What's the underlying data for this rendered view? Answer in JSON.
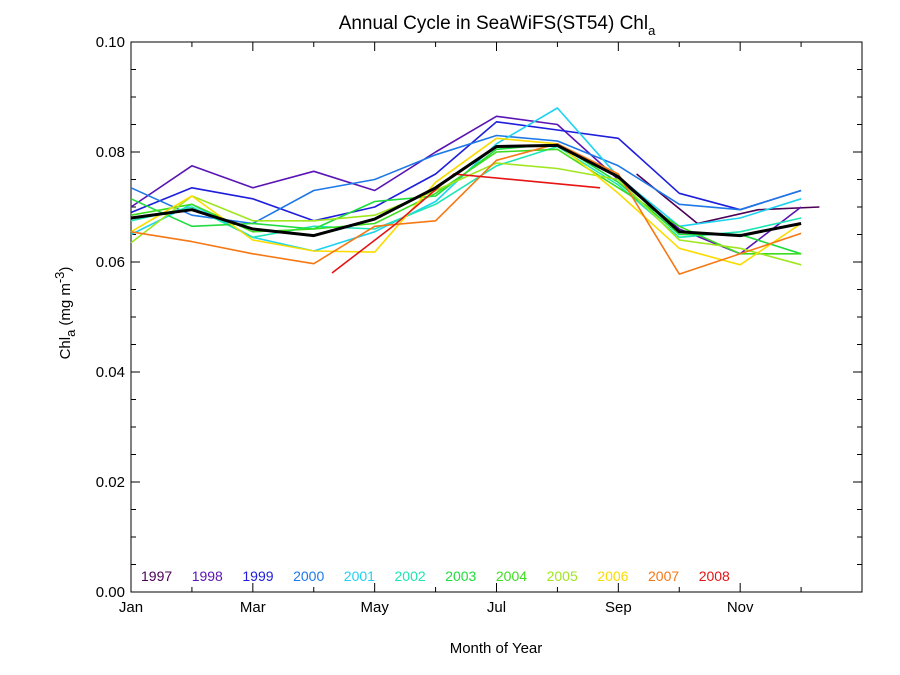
{
  "chart_data": {
    "type": "line",
    "title": "Annual Cycle in SeaWiFS(ST54) Chl",
    "title_subscript": "a",
    "xlabel": "Month of Year",
    "ylabel": "Chl",
    "ylabel_subscript": "a",
    "ylabel_units": "(mg m",
    "ylabel_units_superscript": "-3",
    "ylabel_units_close": ")",
    "xlim": [
      1,
      13
    ],
    "ylim": [
      0.0,
      0.1
    ],
    "x_ticks": [
      {
        "value": 1,
        "label": "Jan"
      },
      {
        "value": 3,
        "label": "Mar"
      },
      {
        "value": 5,
        "label": "May"
      },
      {
        "value": 7,
        "label": "Jul"
      },
      {
        "value": 9,
        "label": "Sep"
      },
      {
        "value": 11,
        "label": "Nov"
      }
    ],
    "y_ticks": [
      {
        "value": 0.0,
        "label": "0.00"
      },
      {
        "value": 0.02,
        "label": "0.02"
      },
      {
        "value": 0.04,
        "label": "0.04"
      },
      {
        "value": 0.06,
        "label": "0.06"
      },
      {
        "value": 0.08,
        "label": "0.08"
      },
      {
        "value": 0.1,
        "label": "0.10"
      }
    ],
    "grid": false,
    "legend_position": "bottom-left",
    "series": [
      {
        "name": "1997",
        "color": "#4b0055",
        "x": [
          9.3,
          10.3,
          11.3,
          12.3
        ],
        "y": [
          0.076,
          0.067,
          0.0695,
          0.07
        ]
      },
      {
        "name": "1998",
        "color": "#5a14b4",
        "x": [
          1,
          2,
          3,
          4,
          5,
          6,
          7,
          8,
          9,
          10,
          11,
          12
        ],
        "y": [
          0.07,
          0.0775,
          0.0735,
          0.0765,
          0.073,
          0.08,
          0.0865,
          0.085,
          0.075,
          0.066,
          0.0615,
          0.07
        ]
      },
      {
        "name": "1999",
        "color": "#1e1edc",
        "x": [
          1,
          2,
          3,
          4,
          5,
          6,
          7,
          8,
          9,
          10,
          11,
          12
        ],
        "y": [
          0.069,
          0.0735,
          0.0715,
          0.0675,
          0.07,
          0.076,
          0.0855,
          0.084,
          0.0825,
          0.0725,
          0.0695,
          0.073
        ]
      },
      {
        "name": "2000",
        "color": "#1e78e6",
        "x": [
          1,
          2,
          3,
          4,
          5,
          6,
          7,
          8,
          9,
          10,
          11,
          12
        ],
        "y": [
          0.0735,
          0.0685,
          0.067,
          0.073,
          0.075,
          0.0795,
          0.083,
          0.082,
          0.0775,
          0.0705,
          0.0695,
          0.073
        ]
      },
      {
        "name": "2001",
        "color": "#1ed2f0",
        "x": [
          1,
          2,
          3,
          4,
          5,
          6,
          7,
          8,
          9,
          10,
          11,
          12
        ],
        "y": [
          0.065,
          0.0705,
          0.0645,
          0.062,
          0.0655,
          0.071,
          0.0815,
          0.088,
          0.0755,
          0.0665,
          0.068,
          0.0715
        ]
      },
      {
        "name": "2002",
        "color": "#1ee6b4",
        "x": [
          1,
          2,
          3,
          4,
          5,
          6,
          7,
          8,
          9,
          10,
          11,
          12
        ],
        "y": [
          0.0675,
          0.07,
          0.0645,
          0.0665,
          0.066,
          0.0705,
          0.0775,
          0.081,
          0.074,
          0.0645,
          0.0655,
          0.068
        ]
      },
      {
        "name": "2003",
        "color": "#1edc3c",
        "x": [
          1,
          2,
          3,
          4,
          5,
          6,
          7,
          8,
          9,
          10,
          11,
          12
        ],
        "y": [
          0.0715,
          0.0665,
          0.067,
          0.066,
          0.071,
          0.072,
          0.0805,
          0.0815,
          0.0745,
          0.065,
          0.065,
          0.0615
        ]
      },
      {
        "name": "2004",
        "color": "#3cdc1e",
        "x": [
          1,
          2,
          3,
          4,
          5,
          6,
          7,
          8,
          9,
          10,
          11,
          12
        ],
        "y": [
          0.0685,
          0.0705,
          0.0655,
          0.066,
          0.067,
          0.0725,
          0.08,
          0.0805,
          0.0735,
          0.0665,
          0.0615,
          0.0615
        ]
      },
      {
        "name": "2005",
        "color": "#a0e61e",
        "x": [
          1,
          2,
          3,
          4,
          5,
          6,
          7,
          8,
          9,
          10,
          11,
          12
        ],
        "y": [
          0.0635,
          0.072,
          0.0675,
          0.0675,
          0.0685,
          0.073,
          0.078,
          0.077,
          0.075,
          0.064,
          0.0625,
          0.0595
        ]
      },
      {
        "name": "2006",
        "color": "#fadc00",
        "x": [
          1,
          2,
          3,
          4,
          5,
          6,
          7,
          8,
          9,
          10,
          11,
          12
        ],
        "y": [
          0.0655,
          0.072,
          0.064,
          0.062,
          0.0618,
          0.0745,
          0.0825,
          0.0815,
          0.0725,
          0.0625,
          0.0595,
          0.067
        ]
      },
      {
        "name": "2007",
        "color": "#f57814",
        "x": [
          1,
          2,
          3,
          4,
          5,
          6,
          7,
          8,
          9,
          10,
          11,
          12
        ],
        "y": [
          0.0655,
          0.0637,
          0.0615,
          0.0597,
          0.0665,
          0.0675,
          0.0785,
          0.0815,
          0.076,
          0.0578,
          0.0615,
          0.0652
        ]
      },
      {
        "name": "2008",
        "color": "#e61414",
        "x": [
          4.3,
          5.3,
          6.3,
          8.7
        ],
        "y": [
          0.058,
          0.0665,
          0.076,
          0.0735
        ]
      },
      {
        "name": "",
        "color": "#000000",
        "bold": true,
        "x": [
          1,
          2,
          3,
          4,
          5,
          6,
          7,
          8,
          9,
          10,
          11,
          12
        ],
        "y": [
          0.068,
          0.0695,
          0.066,
          0.0648,
          0.0678,
          0.0735,
          0.081,
          0.0812,
          0.0755,
          0.0655,
          0.0648,
          0.067
        ]
      }
    ]
  }
}
